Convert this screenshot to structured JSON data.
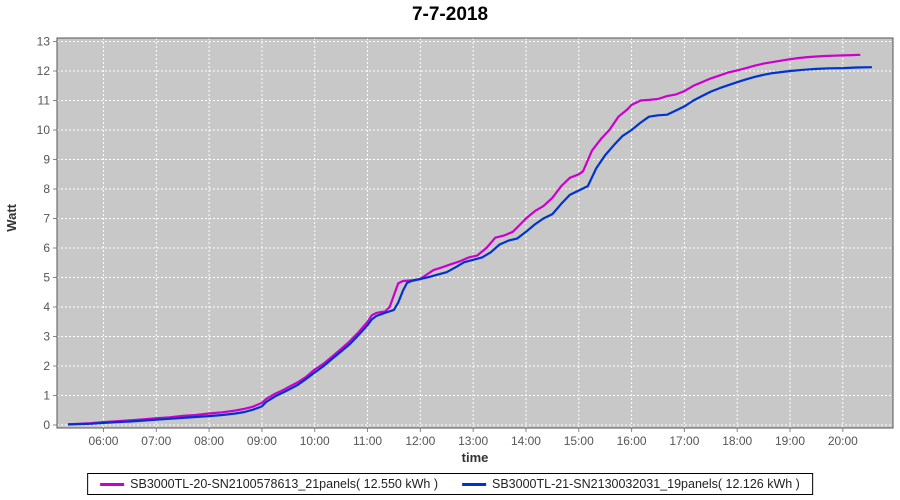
{
  "chart_data": {
    "type": "line",
    "title": "7-7-2018",
    "xlabel": "time",
    "ylabel": "Watt",
    "xlim_hours": [
      5.12,
      20.95
    ],
    "ylim": [
      0,
      13
    ],
    "grid": "white dashed on gray, both axes",
    "legend_position": "bottom-center",
    "plot_bg": "#c8c8c8",
    "plot_border": "#545454",
    "tick_label_color": "#555555",
    "yticks": [
      0,
      1,
      2,
      3,
      4,
      5,
      6,
      7,
      8,
      9,
      10,
      11,
      12,
      13
    ],
    "xticks": [
      {
        "hour": 6,
        "label": "06:00"
      },
      {
        "hour": 7,
        "label": "07:00"
      },
      {
        "hour": 8,
        "label": "08:00"
      },
      {
        "hour": 9,
        "label": "09:00"
      },
      {
        "hour": 10,
        "label": "10:00"
      },
      {
        "hour": 11,
        "label": "11:00"
      },
      {
        "hour": 12,
        "label": "12:00"
      },
      {
        "hour": 13,
        "label": "13:00"
      },
      {
        "hour": 14,
        "label": "14:00"
      },
      {
        "hour": 15,
        "label": "15:00"
      },
      {
        "hour": 16,
        "label": "16:00"
      },
      {
        "hour": 17,
        "label": "17:00"
      },
      {
        "hour": 18,
        "label": "18:00"
      },
      {
        "hour": 19,
        "label": "19:00"
      },
      {
        "hour": 20,
        "label": "20:00"
      }
    ],
    "series": [
      {
        "name": "SB3000TL-20-SN2100578613_21panels( 12.550 kWh )",
        "color": "#cc00cc",
        "total_kwh": "12.550",
        "points": [
          [
            5.33,
            0.02
          ],
          [
            5.75,
            0.06
          ],
          [
            6.0,
            0.1
          ],
          [
            6.25,
            0.13
          ],
          [
            6.5,
            0.16
          ],
          [
            6.75,
            0.19
          ],
          [
            7.0,
            0.23
          ],
          [
            7.25,
            0.26
          ],
          [
            7.5,
            0.31
          ],
          [
            7.75,
            0.34
          ],
          [
            8.0,
            0.39
          ],
          [
            8.25,
            0.43
          ],
          [
            8.5,
            0.49
          ],
          [
            8.67,
            0.55
          ],
          [
            8.83,
            0.62
          ],
          [
            9.0,
            0.75
          ],
          [
            9.08,
            0.88
          ],
          [
            9.25,
            1.06
          ],
          [
            9.42,
            1.2
          ],
          [
            9.5,
            1.28
          ],
          [
            9.67,
            1.44
          ],
          [
            9.83,
            1.62
          ],
          [
            10.0,
            1.88
          ],
          [
            10.17,
            2.08
          ],
          [
            10.33,
            2.32
          ],
          [
            10.5,
            2.58
          ],
          [
            10.67,
            2.85
          ],
          [
            10.83,
            3.15
          ],
          [
            11.0,
            3.5
          ],
          [
            11.08,
            3.72
          ],
          [
            11.17,
            3.8
          ],
          [
            11.33,
            3.85
          ],
          [
            11.42,
            4.0
          ],
          [
            11.5,
            4.4
          ],
          [
            11.58,
            4.8
          ],
          [
            11.67,
            4.88
          ],
          [
            11.83,
            4.9
          ],
          [
            12.0,
            4.95
          ],
          [
            12.08,
            5.05
          ],
          [
            12.25,
            5.25
          ],
          [
            12.42,
            5.35
          ],
          [
            12.58,
            5.45
          ],
          [
            12.75,
            5.55
          ],
          [
            12.92,
            5.68
          ],
          [
            13.08,
            5.75
          ],
          [
            13.25,
            6.0
          ],
          [
            13.42,
            6.35
          ],
          [
            13.58,
            6.42
          ],
          [
            13.75,
            6.55
          ],
          [
            13.92,
            6.85
          ],
          [
            14.0,
            7.0
          ],
          [
            14.17,
            7.25
          ],
          [
            14.33,
            7.42
          ],
          [
            14.5,
            7.7
          ],
          [
            14.67,
            8.1
          ],
          [
            14.83,
            8.38
          ],
          [
            15.0,
            8.5
          ],
          [
            15.08,
            8.6
          ],
          [
            15.25,
            9.3
          ],
          [
            15.42,
            9.7
          ],
          [
            15.58,
            10.0
          ],
          [
            15.75,
            10.45
          ],
          [
            15.92,
            10.7
          ],
          [
            16.0,
            10.85
          ],
          [
            16.17,
            11.0
          ],
          [
            16.33,
            11.02
          ],
          [
            16.5,
            11.05
          ],
          [
            16.67,
            11.15
          ],
          [
            16.83,
            11.2
          ],
          [
            17.0,
            11.32
          ],
          [
            17.17,
            11.5
          ],
          [
            17.33,
            11.62
          ],
          [
            17.5,
            11.75
          ],
          [
            17.67,
            11.85
          ],
          [
            17.83,
            11.95
          ],
          [
            18.0,
            12.02
          ],
          [
            18.17,
            12.1
          ],
          [
            18.33,
            12.18
          ],
          [
            18.5,
            12.25
          ],
          [
            18.67,
            12.3
          ],
          [
            18.83,
            12.35
          ],
          [
            19.0,
            12.4
          ],
          [
            19.17,
            12.44
          ],
          [
            19.33,
            12.47
          ],
          [
            19.5,
            12.49
          ],
          [
            19.67,
            12.51
          ],
          [
            19.83,
            12.52
          ],
          [
            20.0,
            12.53
          ],
          [
            20.17,
            12.54
          ],
          [
            20.33,
            12.55
          ]
        ]
      },
      {
        "name": "SB3000TL-21-SN2130032031_19panels( 12.126 kWh )",
        "color": "#0033cc",
        "total_kwh": "12.126",
        "points": [
          [
            5.33,
            0.02
          ],
          [
            5.75,
            0.04
          ],
          [
            6.0,
            0.07
          ],
          [
            6.25,
            0.1
          ],
          [
            6.5,
            0.12
          ],
          [
            6.75,
            0.15
          ],
          [
            7.0,
            0.18
          ],
          [
            7.25,
            0.21
          ],
          [
            7.5,
            0.24
          ],
          [
            7.75,
            0.27
          ],
          [
            8.0,
            0.3
          ],
          [
            8.25,
            0.34
          ],
          [
            8.5,
            0.39
          ],
          [
            8.67,
            0.44
          ],
          [
            8.83,
            0.52
          ],
          [
            9.0,
            0.63
          ],
          [
            9.08,
            0.78
          ],
          [
            9.25,
            0.97
          ],
          [
            9.42,
            1.12
          ],
          [
            9.5,
            1.19
          ],
          [
            9.67,
            1.35
          ],
          [
            9.83,
            1.55
          ],
          [
            10.0,
            1.78
          ],
          [
            10.17,
            2.0
          ],
          [
            10.33,
            2.24
          ],
          [
            10.5,
            2.49
          ],
          [
            10.67,
            2.75
          ],
          [
            10.83,
            3.05
          ],
          [
            11.0,
            3.38
          ],
          [
            11.08,
            3.58
          ],
          [
            11.17,
            3.7
          ],
          [
            11.33,
            3.8
          ],
          [
            11.5,
            3.9
          ],
          [
            11.58,
            4.15
          ],
          [
            11.67,
            4.55
          ],
          [
            11.75,
            4.82
          ],
          [
            11.83,
            4.88
          ],
          [
            12.0,
            4.95
          ],
          [
            12.17,
            5.02
          ],
          [
            12.33,
            5.1
          ],
          [
            12.5,
            5.18
          ],
          [
            12.67,
            5.35
          ],
          [
            12.83,
            5.52
          ],
          [
            13.0,
            5.6
          ],
          [
            13.17,
            5.68
          ],
          [
            13.33,
            5.85
          ],
          [
            13.5,
            6.12
          ],
          [
            13.67,
            6.25
          ],
          [
            13.83,
            6.32
          ],
          [
            14.0,
            6.55
          ],
          [
            14.17,
            6.8
          ],
          [
            14.33,
            7.0
          ],
          [
            14.5,
            7.15
          ],
          [
            14.67,
            7.5
          ],
          [
            14.83,
            7.8
          ],
          [
            15.0,
            7.95
          ],
          [
            15.17,
            8.1
          ],
          [
            15.33,
            8.7
          ],
          [
            15.5,
            9.15
          ],
          [
            15.67,
            9.5
          ],
          [
            15.83,
            9.8
          ],
          [
            16.0,
            10.0
          ],
          [
            16.17,
            10.25
          ],
          [
            16.33,
            10.45
          ],
          [
            16.5,
            10.5
          ],
          [
            16.67,
            10.52
          ],
          [
            16.83,
            10.65
          ],
          [
            17.0,
            10.8
          ],
          [
            17.17,
            11.0
          ],
          [
            17.33,
            11.15
          ],
          [
            17.5,
            11.3
          ],
          [
            17.67,
            11.42
          ],
          [
            17.83,
            11.52
          ],
          [
            18.0,
            11.62
          ],
          [
            18.17,
            11.72
          ],
          [
            18.33,
            11.8
          ],
          [
            18.5,
            11.87
          ],
          [
            18.67,
            11.93
          ],
          [
            19.0,
            12.0
          ],
          [
            19.25,
            12.04
          ],
          [
            19.5,
            12.07
          ],
          [
            19.75,
            12.09
          ],
          [
            20.0,
            12.1
          ],
          [
            20.25,
            12.12
          ],
          [
            20.55,
            12.13
          ]
        ]
      }
    ]
  }
}
